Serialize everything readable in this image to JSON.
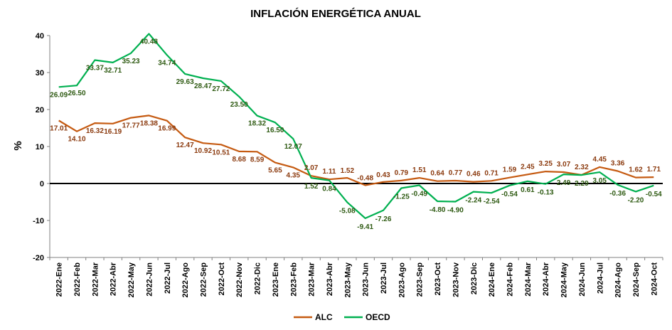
{
  "chart_data": {
    "type": "line",
    "title": "INFLACIÓN ENERGÉTICA ANUAL",
    "ylabel": "%",
    "xlabel": "",
    "ylim": [
      -20,
      40
    ],
    "yticks": [
      -20,
      -10,
      0,
      10,
      20,
      30,
      40
    ],
    "grid": false,
    "legend": "bottom",
    "categories": [
      "2022-Ene",
      "2022-Feb",
      "2022-Mar",
      "2022-Abr",
      "2022-May",
      "2022-Jun",
      "2022-Jul",
      "2022-Ago",
      "2022-Sep",
      "2022-Oct",
      "2022-Nov",
      "2022-Dic",
      "2023-Ene",
      "2023-Feb",
      "2023-Mar",
      "2023-Abr",
      "2023-May",
      "2023-Jun",
      "2023-Jul",
      "2023-Ago",
      "2023-Sep",
      "2023-Oct",
      "2023-Nov",
      "2023-Dic",
      "2024-Ene",
      "2024-Feb",
      "2024-Mar",
      "2024-Abr",
      "2024-May",
      "2024-Jun",
      "2024-Jul",
      "2024-Ago",
      "2024-Sep",
      "2024-Oct"
    ],
    "series": [
      {
        "name": "ALC",
        "color": "#C55A11",
        "label_color": "#8B3A0E",
        "values": [
          17.01,
          14.1,
          16.32,
          16.19,
          17.77,
          18.38,
          16.99,
          12.47,
          10.92,
          10.51,
          8.68,
          8.59,
          5.65,
          4.35,
          2.07,
          1.11,
          1.52,
          -0.48,
          0.43,
          0.79,
          1.51,
          0.64,
          0.77,
          0.46,
          0.71,
          1.59,
          2.45,
          3.25,
          3.07,
          2.32,
          4.45,
          3.36,
          1.62,
          1.71
        ],
        "labels": [
          "17.01",
          "14.10",
          "16.32",
          "16.19",
          "17.77",
          "18.38",
          "16.99",
          "12.47",
          "10.92",
          "10.51",
          "8.68",
          "8.59",
          "5.65",
          "4.35",
          "2.07",
          "1.11",
          "1.52",
          "-0.48",
          "0.43",
          "0.79",
          "1.51",
          "0.64",
          "0.77",
          "0.46",
          "0.71",
          "1.59",
          "2.45",
          "3.25",
          "3.07",
          "2.32",
          "4.45",
          "3.36",
          "1.62",
          "1.71"
        ]
      },
      {
        "name": "OECD",
        "color": "#00B050",
        "label_color": "#2E5A12",
        "values": [
          26.09,
          26.5,
          33.37,
          32.71,
          35.23,
          40.48,
          34.74,
          29.63,
          28.47,
          27.72,
          23.5,
          18.32,
          16.5,
          12.07,
          1.52,
          0.84,
          -5.08,
          -9.41,
          -7.26,
          -1.25,
          -0.49,
          -4.8,
          -4.9,
          -2.24,
          -2.54,
          -0.54,
          0.61,
          -0.13,
          2.49,
          2.29,
          3.05,
          -0.36,
          -2.2,
          -0.54
        ],
        "labels": [
          "26.09",
          "26.50",
          "33.37",
          "32.71",
          "35.23",
          "40.48",
          "34.74",
          "29.63",
          "28.47",
          "27.72",
          "23.50",
          "18.32",
          "16.50",
          "12.07",
          "1.52",
          "0.84",
          "-5.08",
          "-9.41",
          "-7.26",
          "-1.25",
          "-0.49",
          "-4.80",
          "-4.90",
          "-2.24",
          "-2.54",
          "-0.54",
          "0.61",
          "-0.13",
          "2.49",
          "2.29",
          "3.05",
          "-0.36",
          "-2.20",
          "-0.54"
        ]
      }
    ]
  }
}
